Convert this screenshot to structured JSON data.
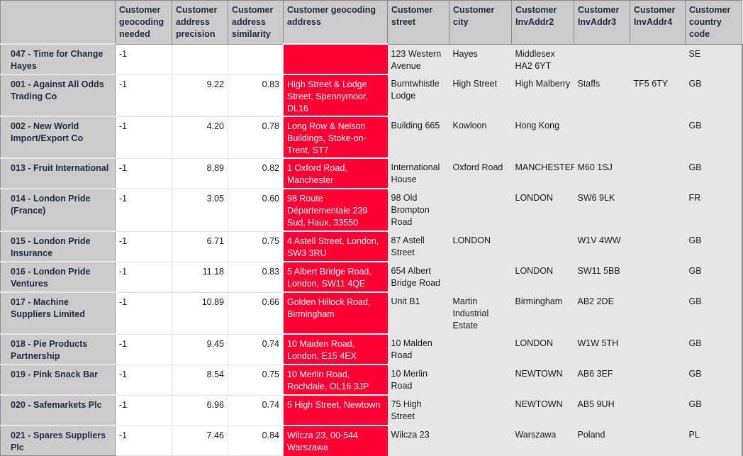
{
  "colors": {
    "header_bg": "#cbcbcb",
    "highlight": "#ff0033",
    "grey_cell": "#e6e6e6"
  },
  "columns": [
    "",
    "Customer geocoding needed",
    "Customer address precision",
    "Customer address similarity",
    "Customer geocoding address",
    "Customer street",
    "Customer city",
    "Customer InvAddr2",
    "Customer InvAddr3",
    "Customer InvAddr4",
    "Customer country code"
  ],
  "rows": [
    {
      "name": "047 - Time for Change Hayes",
      "needed": "-1",
      "precision": "",
      "similarity": "",
      "geo_address": "",
      "street": "123 Western Avenue",
      "city": "Hayes",
      "addr2": "Middlesex HA2 6YT",
      "addr3": "",
      "addr4": "",
      "country": "SE"
    },
    {
      "name": "001 - Against All Odds Trading Co",
      "needed": "-1",
      "precision": "9.22",
      "similarity": "0.83",
      "geo_address": "High Street & Lodge Street, Spennymoor, DL16",
      "street": "Burntwhistle Lodge",
      "city": "High Street",
      "addr2": "High Malberry",
      "addr3": "Staffs",
      "addr4": "TF5 6TY",
      "country": "GB"
    },
    {
      "name": "002 - New World Import/Export Co",
      "needed": "-1",
      "precision": "4.20",
      "similarity": "0.78",
      "geo_address": "Long Row & Nelson Buildings, Stoke-on-Trent, ST7",
      "street": "Building 665",
      "city": "Kowloon",
      "addr2": "Hong Kong",
      "addr3": "",
      "addr4": "",
      "country": "GB"
    },
    {
      "name": "013 - Fruit International",
      "needed": "-1",
      "precision": "8.89",
      "similarity": "0.82",
      "geo_address": "1 Oxford Road, Manchester",
      "street": "International House",
      "city": "Oxford Road",
      "addr2": "MANCHESTER",
      "addr3": "M60 1SJ",
      "addr4": "",
      "country": "GB"
    },
    {
      "name": "014 - London Pride (France)",
      "needed": "-1",
      "precision": "3.05",
      "similarity": "0.60",
      "geo_address": "98 Route Départementale 239 Sud, Haux, 33550",
      "street": "98 Old Brompton Road",
      "city": "",
      "addr2": "LONDON",
      "addr3": "SW6 9LK",
      "addr4": "",
      "country": "FR"
    },
    {
      "name": "015 - London Pride Insurance",
      "needed": "-1",
      "precision": "6.71",
      "similarity": "0.75",
      "geo_address": "4 Astell Street, London, SW3 3RU",
      "street": "87 Astell Street",
      "city": "LONDON",
      "addr2": "",
      "addr3": "W1V 4WW",
      "addr4": "",
      "country": "GB"
    },
    {
      "name": "016 - London Pride Ventures",
      "needed": "-1",
      "precision": "11.18",
      "similarity": "0.83",
      "geo_address": "5 Albert Bridge Road, London, SW11 4QE",
      "street": "654 Albert Bridge Road",
      "city": "",
      "addr2": "LONDON",
      "addr3": "SW11 5BB",
      "addr4": "",
      "country": "GB"
    },
    {
      "name": "017 - Machine Suppliers Limited",
      "needed": "-1",
      "precision": "10.89",
      "similarity": "0.66",
      "geo_address": "Golden Hillock Road, Birmingham",
      "street": "Unit B1",
      "city": "Martin Industrial Estate",
      "addr2": "Birmingham",
      "addr3": "AB2 2DE",
      "addr4": "",
      "country": "GB"
    },
    {
      "name": "018 - Pie Products Partnership",
      "needed": "-1",
      "precision": "9.45",
      "similarity": "0.74",
      "geo_address": "10 Maiden Road, London, E15 4EX",
      "street": "10 Malden Road",
      "city": "",
      "addr2": "LONDON",
      "addr3": "W1W 5TH",
      "addr4": "",
      "country": "GB"
    },
    {
      "name": "019 - Pink Snack Bar",
      "needed": "-1",
      "precision": "8.54",
      "similarity": "0.75",
      "geo_address": "10 Merlin Road, Rochdale, OL16 3JP",
      "street": "10 Merlin Road",
      "city": "",
      "addr2": "NEWTOWN",
      "addr3": "AB6 3EF",
      "addr4": "",
      "country": "GB"
    },
    {
      "name": "020 - Safemarkets Plc",
      "needed": "-1",
      "precision": "6.96",
      "similarity": "0.74",
      "geo_address": "5 High Street, Newtown",
      "street": "75 High Street",
      "city": "",
      "addr2": "NEWTOWN",
      "addr3": "AB5 9UH",
      "addr4": "",
      "country": "GB"
    },
    {
      "name": "021 - Spares Suppliers Plc",
      "needed": "-1",
      "precision": "7.46",
      "similarity": "0.84",
      "geo_address": "Wilcza 23, 00-544 Warszawa",
      "street": "Wilcza 23",
      "city": "",
      "addr2": "Warszawa",
      "addr3": "Poland",
      "addr4": "",
      "country": "PL"
    }
  ]
}
